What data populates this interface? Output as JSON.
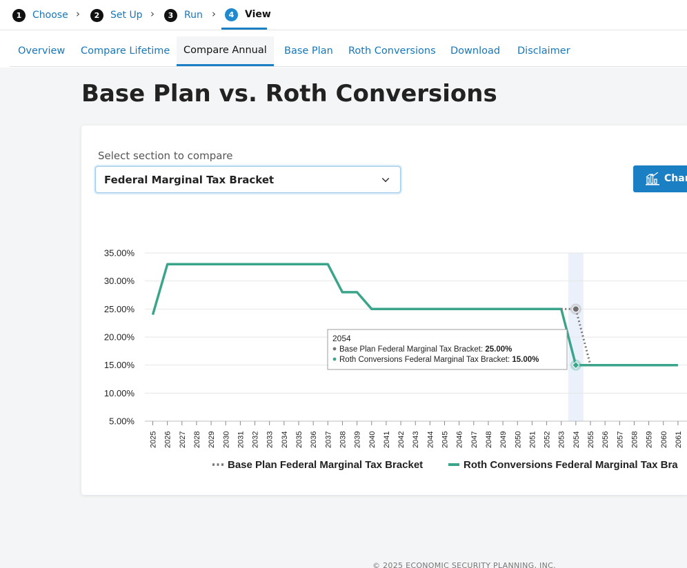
{
  "stepper": {
    "steps": [
      {
        "num": "1",
        "label": "Choose"
      },
      {
        "num": "2",
        "label": "Set Up"
      },
      {
        "num": "3",
        "label": "Run"
      },
      {
        "num": "4",
        "label": "View"
      }
    ],
    "active_index": 3
  },
  "tabs": [
    {
      "label": "Overview"
    },
    {
      "label": "Compare Lifetime"
    },
    {
      "label": "Compare Annual"
    },
    {
      "label": "Base Plan"
    },
    {
      "label": "Roth Conversions"
    },
    {
      "label": "Download"
    },
    {
      "label": "Disclaimer"
    }
  ],
  "active_tab": "Compare Annual",
  "page_title": "Base Plan vs. Roth Conversions",
  "compare": {
    "label": "Select section to compare",
    "selected": "Federal Marginal Tax Bracket",
    "chart_button_label": "Char"
  },
  "chart_data": {
    "type": "line",
    "x": [
      2025,
      2026,
      2027,
      2028,
      2029,
      2030,
      2031,
      2032,
      2033,
      2034,
      2035,
      2036,
      2037,
      2038,
      2039,
      2040,
      2041,
      2042,
      2043,
      2044,
      2045,
      2046,
      2047,
      2048,
      2049,
      2050,
      2051,
      2052,
      2053,
      2054,
      2055,
      2056,
      2057,
      2058,
      2059,
      2060,
      2061
    ],
    "x_tick_labels": [
      "2025",
      "2026",
      "2027",
      "2028",
      "2029",
      "2030",
      "2031",
      "2032",
      "2033",
      "2034",
      "2035",
      "2036",
      "2037",
      "2038",
      "2039",
      "2040",
      "2041",
      "2042",
      "2043",
      "2044",
      "2045",
      "2046",
      "2047",
      "2048",
      "2049",
      "2050",
      "2051",
      "2052",
      "2053",
      "2054",
      "2055",
      "2056",
      "2057",
      "2058",
      "2059",
      "2060",
      "2061"
    ],
    "ylim": [
      5,
      35
    ],
    "y_ticks": [
      5,
      10,
      15,
      20,
      25,
      30,
      35
    ],
    "y_tick_labels": [
      "5.00%",
      "10.00%",
      "15.00%",
      "20.00%",
      "25.00%",
      "30.00%",
      "35.00%"
    ],
    "grid": true,
    "legend_position": "bottom",
    "series": [
      {
        "name": "Base Plan Federal Marginal Tax Bracket",
        "style": "dotted",
        "color": "#777777",
        "x": [
          2053,
          2054,
          2055
        ],
        "values": [
          25,
          25,
          15
        ]
      },
      {
        "name": "Roth Conversions Federal Marginal Tax Bracket",
        "style": "solid",
        "color": "#3aa58a",
        "x": [
          2025,
          2026,
          2027,
          2028,
          2029,
          2030,
          2031,
          2032,
          2033,
          2034,
          2035,
          2036,
          2037,
          2038,
          2039,
          2040,
          2041,
          2042,
          2043,
          2044,
          2045,
          2046,
          2047,
          2048,
          2049,
          2050,
          2051,
          2052,
          2053,
          2054,
          2055,
          2056,
          2057,
          2058,
          2059,
          2060,
          2061
        ],
        "values": [
          24,
          33,
          33,
          33,
          33,
          33,
          33,
          33,
          33,
          33,
          33,
          33,
          33,
          28,
          28,
          25,
          25,
          25,
          25,
          25,
          25,
          25,
          25,
          25,
          25,
          25,
          25,
          25,
          25,
          15,
          15,
          15,
          15,
          15,
          15,
          15,
          15
        ]
      }
    ],
    "legend_labels": [
      "Base Plan Federal Marginal Tax Bracket",
      "Roth Conversions Federal Marginal Tax Bra"
    ],
    "tooltip": {
      "x": 2054,
      "title": "2054",
      "lines": [
        {
          "label": "Base Plan Federal Marginal Tax Bracket: ",
          "value": "25.00%",
          "color": "#777777"
        },
        {
          "label": "Roth Conversions Federal Marginal Tax Bracket: ",
          "value": "15.00%",
          "color": "#3aa58a"
        }
      ]
    }
  },
  "footer": "© 2025 ECONOMIC SECURITY PLANNING, INC."
}
